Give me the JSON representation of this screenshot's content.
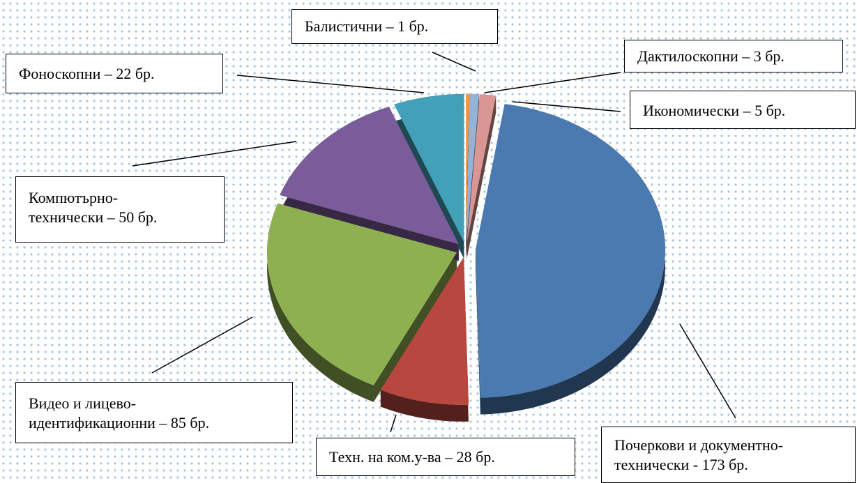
{
  "chart_data": {
    "type": "pie",
    "values": [
      1,
      3,
      5,
      173,
      28,
      85,
      50,
      22
    ],
    "value_labels": [
      "Балистични – 1 бр.",
      "Дактилоскопни – 3 бр.",
      "Икономически – 5 бр.",
      "Почеркови и документно-технически - 173 бр.",
      "Техн. на ком.у-ва – 28 бр.",
      "Видео и лицево-идентификационни – 85 бр.",
      "Компютърно-технически – 50 бр.",
      "Фоноскопни – 22 бр."
    ],
    "colors": [
      "#f79646",
      "#95b3d7",
      "#d99694",
      "#4a7ab0",
      "#b8473f",
      "#8fb050",
      "#7a5c9a",
      "#42a0b8"
    ]
  }
}
